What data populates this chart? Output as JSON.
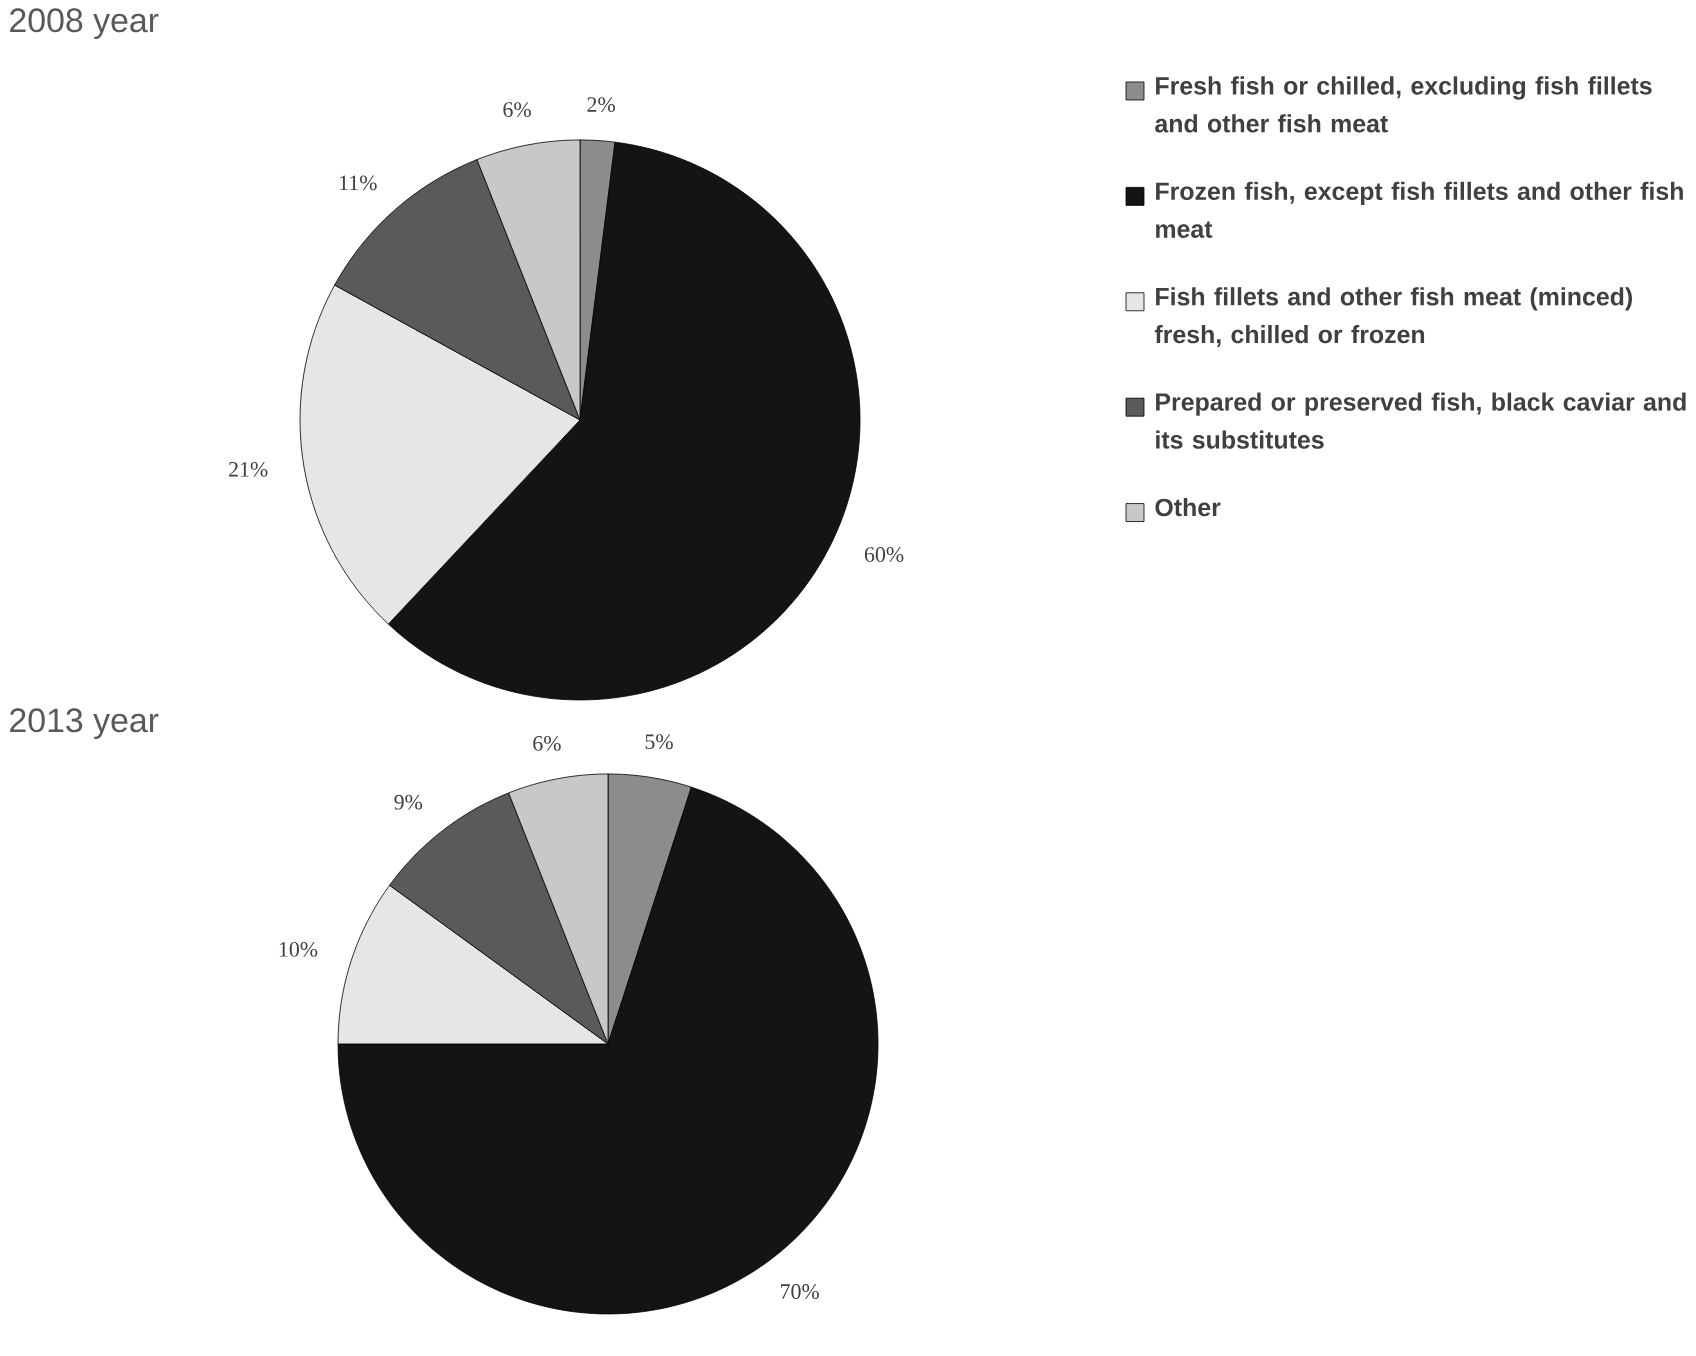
{
  "chart_data": [
    {
      "type": "pie",
      "title": "2008 year",
      "categories": [
        "Fresh fish or chilled, excluding fish fillets and other fish meat",
        "Frozen fish, except fish fillets and other fish meat",
        "Fish fillets and other fish meat (minced) fresh, chilled or frozen",
        "Prepared or preserved fish, black caviar and its substitutes",
        "Other"
      ],
      "values": [
        2,
        60,
        21,
        11,
        6
      ],
      "value_labels": [
        "2%",
        "60%",
        "21%",
        "11%",
        "6%"
      ],
      "colors": [
        "#8c8c8c",
        "#141414",
        "#e6e6e6",
        "#5a5a5a",
        "#c8c8c8"
      ],
      "legend": "right"
    },
    {
      "type": "pie",
      "title": "2013 year",
      "categories": [
        null,
        null,
        null,
        null,
        null
      ],
      "values": [
        5,
        70,
        10,
        9,
        6
      ],
      "value_labels": [
        "5%",
        "70%",
        "10%",
        "9%",
        "6%"
      ],
      "colors": [
        "#8c8c8c",
        "#141414",
        "#e6e6e6",
        "#5a5a5a",
        "#c8c8c8"
      ]
    }
  ]
}
